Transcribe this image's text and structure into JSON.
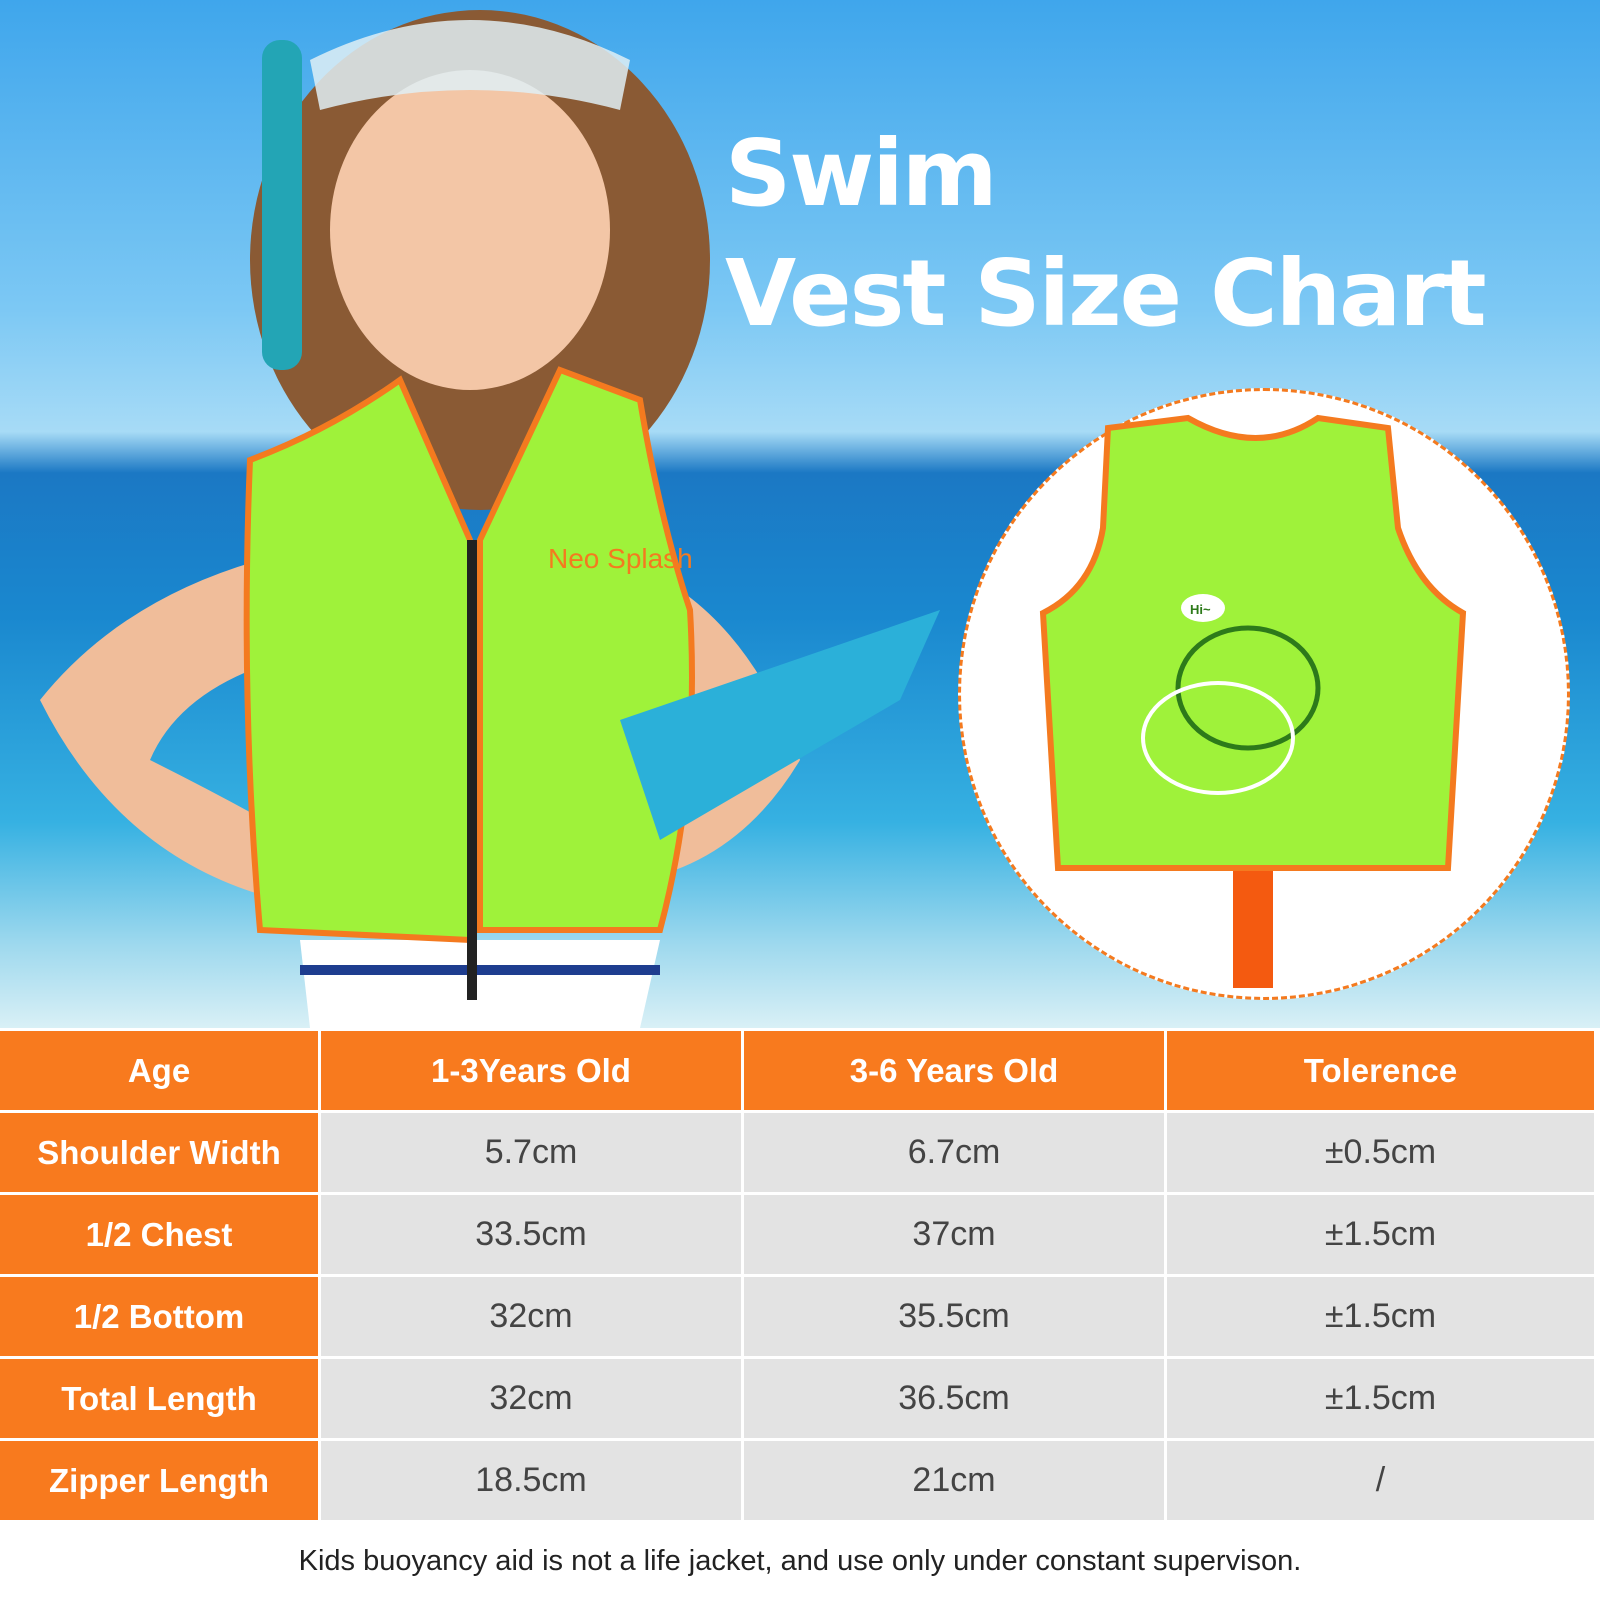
{
  "title": {
    "line1": "Swim",
    "line2": "Vest Size Chart"
  },
  "brand_logo": "Neo Splash",
  "vest_speech_bubble": "Hi~",
  "colors": {
    "accent": "#f87a1e",
    "vest_green": "#9ff23a",
    "cell_bg": "#e3e3e3"
  },
  "table": {
    "headers": [
      "Age",
      "1-3Years Old",
      "3-6 Years Old",
      "Tolerence"
    ],
    "rows": [
      [
        "Shoulder Width",
        "5.7cm",
        "6.7cm",
        "±0.5cm"
      ],
      [
        "1/2 Chest",
        "33.5cm",
        "37cm",
        "±1.5cm"
      ],
      [
        "1/2 Bottom",
        "32cm",
        "35.5cm",
        "±1.5cm"
      ],
      [
        "Total Length",
        "32cm",
        "36.5cm",
        "±1.5cm"
      ],
      [
        "Zipper Length",
        "18.5cm",
        "21cm",
        "/"
      ]
    ]
  },
  "note": "Kids buoyancy aid is not a life jacket, and use only under constant supervison."
}
